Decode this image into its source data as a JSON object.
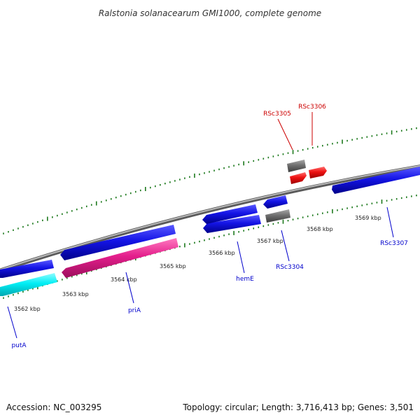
{
  "title": "Ralstonia solanacearum GMI1000, complete genome",
  "footer": {
    "accession": "Accession: NC_003295",
    "topology": "Topology: circular; Length: 3,716,413 bp; Genes: 3,501"
  },
  "colors": {
    "backbone": "#8a8a8a",
    "tick": "#1e7a1e",
    "label_blue": "#0000cc",
    "label_red": "#cc0000"
  },
  "kbp_labels": [
    "3562 kbp",
    "3563 kbp",
    "3564 kbp",
    "3565 kbp",
    "3566 kbp",
    "3567 kbp",
    "3568 kbp",
    "3569 kbp"
  ],
  "genes": [
    {
      "label": "putA",
      "color": "#00e5ee",
      "strand": "-"
    },
    {
      "label": "priA",
      "color": "#e0218a",
      "strand": "-"
    },
    {
      "label": "hemE",
      "color": "#1010e0",
      "strand": "-"
    },
    {
      "label": "RSc3304",
      "color": "#707070",
      "strand": "-"
    },
    {
      "label": "RSc3305",
      "color": "#707070",
      "strand": "+"
    },
    {
      "label": "RSc3306",
      "color": "#ee1111",
      "strand": "+"
    },
    {
      "label": "RSc3307",
      "color": "#1010e0",
      "strand": "+"
    }
  ]
}
